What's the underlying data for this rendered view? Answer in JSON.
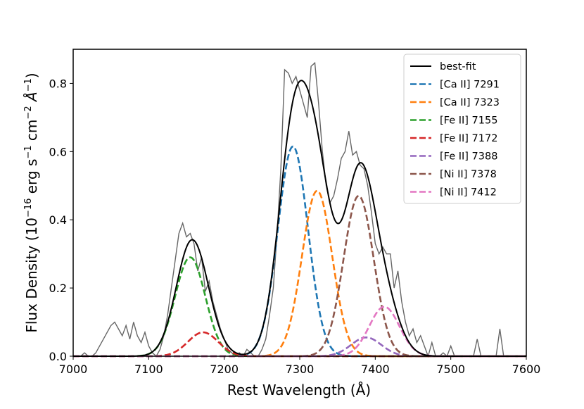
{
  "chart_data": {
    "type": "line",
    "xlabel": "Rest Wavelength (Å)",
    "ylabel": {
      "text": "Flux Density (10−16 erg s−1 cm−2 Å−1)",
      "prefix": "Flux Density (10",
      "exp1": "−16",
      "mid1": " erg s",
      "exp2": "−1",
      "mid2": " cm",
      "exp3": "−2",
      "mid3": " Å",
      "exp4": "−1",
      "suffix": ")"
    },
    "xlim": [
      7000,
      7600
    ],
    "ylim": [
      0,
      0.9
    ],
    "xticks": [
      7000,
      7100,
      7200,
      7300,
      7400,
      7500,
      7600
    ],
    "xtick_labels": [
      "7000",
      "7100",
      "7200",
      "7300",
      "7400",
      "7500",
      "7600"
    ],
    "yticks": [
      0.0,
      0.2,
      0.4,
      0.6,
      0.8
    ],
    "ytick_labels": [
      "0.0",
      "0.2",
      "0.4",
      "0.6",
      "0.8"
    ],
    "grid": false,
    "legend_position": "top-right",
    "components": [
      {
        "name": "[Ca II] 7291",
        "color": "#1f77b4",
        "center": 7291,
        "amplitude": 0.615,
        "sigma": 20
      },
      {
        "name": "[Ca II] 7323",
        "color": "#ff7f0e",
        "center": 7323,
        "amplitude": 0.485,
        "sigma": 20
      },
      {
        "name": "[Fe II] 7155",
        "color": "#2ca02c",
        "center": 7155,
        "amplitude": 0.29,
        "sigma": 20
      },
      {
        "name": "[Fe II] 7172",
        "color": "#d62728",
        "center": 7172,
        "amplitude": 0.07,
        "sigma": 20
      },
      {
        "name": "[Fe II] 7388",
        "color": "#9467bd",
        "center": 7388,
        "amplitude": 0.055,
        "sigma": 20
      },
      {
        "name": "[Ni II] 7378",
        "color": "#8c564b",
        "center": 7378,
        "amplitude": 0.47,
        "sigma": 20
      },
      {
        "name": "[Ni II] 7412",
        "color": "#e377c2",
        "center": 7412,
        "amplitude": 0.145,
        "sigma": 20
      }
    ],
    "best_fit": {
      "name": "best-fit",
      "color": "#000000"
    },
    "observed": {
      "color": "#666666",
      "x": [
        7003,
        7010,
        7015,
        7020,
        7025,
        7030,
        7035,
        7040,
        7045,
        7050,
        7055,
        7060,
        7065,
        7070,
        7075,
        7080,
        7085,
        7090,
        7095,
        7100,
        7105,
        7110,
        7115,
        7120,
        7125,
        7130,
        7135,
        7140,
        7145,
        7150,
        7155,
        7160,
        7165,
        7170,
        7175,
        7180,
        7185,
        7190,
        7195,
        7200,
        7205,
        7210,
        7215,
        7220,
        7225,
        7230,
        7235,
        7240,
        7245,
        7250,
        7255,
        7260,
        7265,
        7270,
        7275,
        7280,
        7285,
        7290,
        7295,
        7300,
        7305,
        7310,
        7315,
        7320,
        7325,
        7330,
        7335,
        7340,
        7345,
        7350,
        7355,
        7360,
        7365,
        7370,
        7375,
        7380,
        7385,
        7390,
        7395,
        7400,
        7405,
        7410,
        7415,
        7420,
        7425,
        7430,
        7435,
        7440,
        7445,
        7450,
        7455,
        7460,
        7465,
        7470,
        7475,
        7480,
        7485,
        7490,
        7495,
        7500,
        7505,
        7510,
        7515,
        7520,
        7525,
        7530,
        7535,
        7540,
        7545,
        7550,
        7555,
        7560,
        7565,
        7570,
        7575,
        7580,
        7585,
        7590,
        7595
      ],
      "y": [
        0.0,
        0.0,
        0.01,
        0.0,
        0.0,
        0.01,
        0.03,
        0.05,
        0.07,
        0.09,
        0.1,
        0.08,
        0.06,
        0.09,
        0.05,
        0.1,
        0.06,
        0.04,
        0.07,
        0.03,
        0.01,
        0.0,
        0.02,
        0.06,
        0.12,
        0.2,
        0.28,
        0.36,
        0.39,
        0.35,
        0.36,
        0.33,
        0.25,
        0.29,
        0.19,
        0.22,
        0.16,
        0.12,
        0.08,
        0.05,
        0.02,
        0.01,
        0.0,
        0.01,
        0.0,
        0.02,
        0.01,
        0.0,
        0.0,
        0.02,
        0.05,
        0.12,
        0.2,
        0.36,
        0.55,
        0.84,
        0.83,
        0.8,
        0.82,
        0.78,
        0.74,
        0.7,
        0.85,
        0.86,
        0.74,
        0.6,
        0.5,
        0.45,
        0.47,
        0.52,
        0.58,
        0.6,
        0.66,
        0.59,
        0.6,
        0.56,
        0.55,
        0.5,
        0.42,
        0.33,
        0.3,
        0.32,
        0.3,
        0.3,
        0.2,
        0.25,
        0.16,
        0.1,
        0.06,
        0.08,
        0.04,
        0.06,
        0.03,
        0.0,
        0.04,
        0.0,
        0.0,
        0.01,
        0.0,
        0.03,
        0.0,
        0.0,
        0.0,
        0.0,
        0.0,
        0.0,
        0.05,
        0.0,
        0.0,
        0.0,
        0.0,
        0.0,
        0.08,
        0.0,
        0.0,
        0.0,
        0.0,
        0.0,
        0.0
      ]
    }
  }
}
